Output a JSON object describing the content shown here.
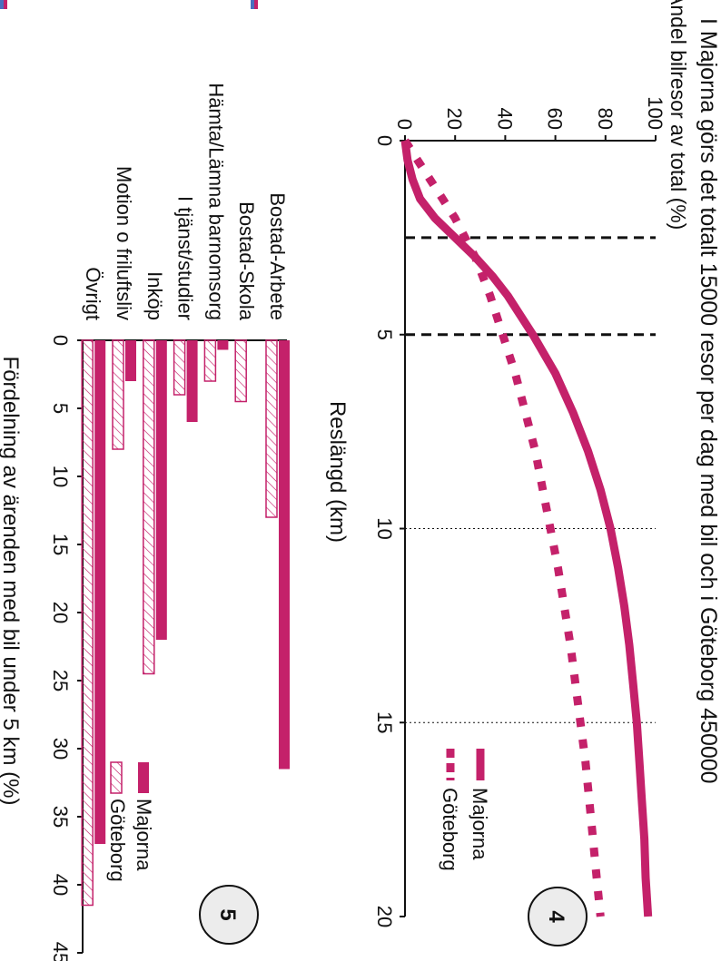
{
  "colors": {
    "majorna": "#c4216a",
    "goteborg": "#c4216a",
    "text": "#111111"
  },
  "cut_marks": {
    "left_top": "0",
    "left_bottom": "20"
  },
  "chart_data": [
    {
      "type": "line",
      "title": "I Majorna görs det totalt 15000 resor per dag med bil och i Göteborg 450000",
      "ylabel": "Andel bilresor av total (%)",
      "xlabel": "Reslängd (km)",
      "badge": "4",
      "xlim": [
        0,
        20
      ],
      "ylim": [
        0,
        100
      ],
      "xticks": [
        "0",
        "5",
        "10",
        "15",
        "20"
      ],
      "yticks": [
        "0",
        "20",
        "40",
        "60",
        "80",
        "100"
      ],
      "reference_lines_x": [
        2.5,
        5
      ],
      "grid_lines_x": [
        10,
        15
      ],
      "legend": {
        "placement": "bottom-right",
        "entries": [
          "Majorna",
          "Göteborg"
        ]
      },
      "series": [
        {
          "name": "Majorna",
          "style": "solid",
          "x": [
            0,
            0.5,
            1,
            1.5,
            2,
            2.5,
            3,
            3.5,
            4,
            4.5,
            5,
            6,
            7,
            8,
            9,
            10,
            11,
            12,
            13,
            14,
            15,
            16,
            17,
            18,
            19,
            20
          ],
          "y": [
            0,
            1,
            3,
            6,
            12,
            20,
            28,
            35,
            41,
            46,
            51,
            60,
            67,
            73,
            78,
            82,
            85,
            87.5,
            89.5,
            91,
            92.5,
            93.5,
            94.5,
            95.5,
            96,
            97
          ]
        },
        {
          "name": "Göteborg",
          "style": "dashed",
          "x": [
            0,
            0.5,
            1,
            1.5,
            2,
            2.5,
            3,
            3.5,
            4,
            5,
            6,
            7,
            8,
            9,
            10,
            11,
            12,
            13,
            14,
            15,
            16,
            17,
            18,
            19,
            20
          ],
          "y": [
            0,
            5,
            10,
            15,
            20,
            24,
            28,
            31,
            34,
            39,
            44,
            48,
            52,
            55,
            58,
            61,
            63.5,
            66,
            68,
            70,
            72,
            73.5,
            75,
            76.5,
            78
          ]
        }
      ]
    },
    {
      "type": "bar",
      "orientation": "horizontal",
      "xlabel": "Fördelning av ärenden med bil under 5 km (%)",
      "badge": "5",
      "xlim": [
        0,
        45
      ],
      "xticks": [
        "0",
        "5",
        "10",
        "15",
        "20",
        "25",
        "30",
        "35",
        "40",
        "45"
      ],
      "categories": [
        "Bostad-Arbete",
        "Bostad-Skola",
        "Hämta/Lämna barnomsorg",
        "I tjänst/studier",
        "Inköp",
        "Motion o friluftsliv",
        "Övrigt"
      ],
      "legend": {
        "placement": "bottom-right",
        "entries": [
          "Majorna",
          "Göteborg"
        ]
      },
      "series": [
        {
          "name": "Majorna",
          "style": "solid",
          "values": [
            31.5,
            0,
            0.7,
            6,
            22,
            3,
            37
          ]
        },
        {
          "name": "Göteborg",
          "style": "hatched",
          "values": [
            13,
            4.5,
            3,
            4,
            24.5,
            8,
            41.5
          ]
        }
      ]
    }
  ]
}
